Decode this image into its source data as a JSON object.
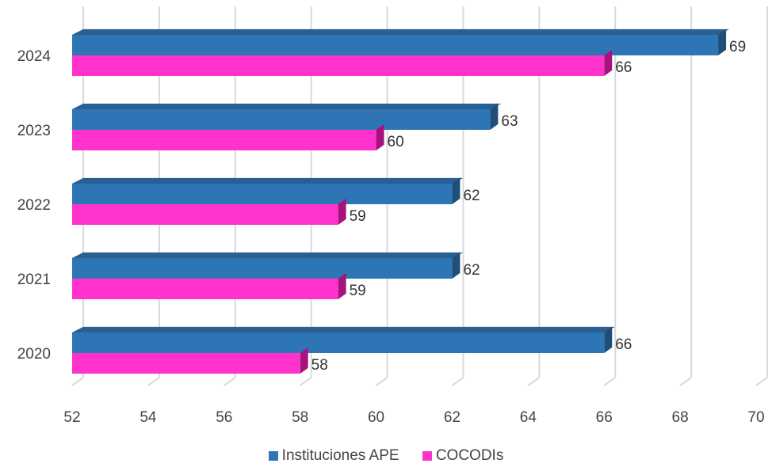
{
  "chart_data": {
    "type": "bar",
    "orientation": "horizontal",
    "categories": [
      "2024",
      "2023",
      "2022",
      "2021",
      "2020"
    ],
    "series": [
      {
        "name": "Instituciones APE",
        "color": "#2E75B6",
        "values": [
          69,
          63,
          62,
          62,
          66
        ]
      },
      {
        "name": "COCODIs",
        "color": "#FF33CC",
        "values": [
          66,
          60,
          59,
          59,
          58
        ]
      }
    ],
    "xlim": [
      52,
      70
    ],
    "xticks": [
      52,
      54,
      56,
      58,
      60,
      62,
      64,
      66,
      68,
      70
    ],
    "grid": true,
    "legend_position": "bottom",
    "title": "",
    "xlabel": "",
    "ylabel": ""
  }
}
